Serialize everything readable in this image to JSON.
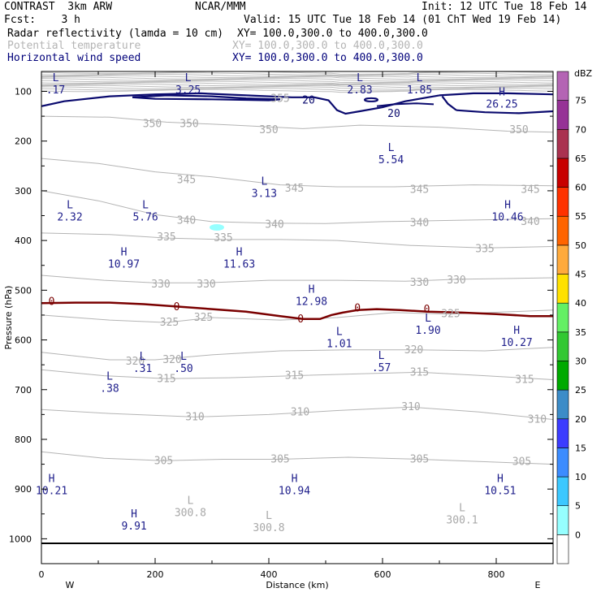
{
  "header": {
    "line1_left": "CONTRAST  3km ARW",
    "line1_mid": "NCAR/MMM",
    "line1_right": "Init: 12 UTC Tue 18 Feb 14",
    "line2_left": "Fcst:    3 h",
    "line2_right": "Valid: 15 UTC Tue 18 Feb 14 (01 ChT Wed 19 Feb 14)",
    "field1": "Radar reflectivity (lamda = 10 cm)",
    "field1_xy": "XY= 100.0,300.0 to 400.0,300.0",
    "field2": "Potential temperature",
    "field2_xy": "XY= 100.0,300.0 to 400.0,300.0",
    "field3": "Horizontal wind speed",
    "field3_xy": "XY= 100.0,300.0 to 400.0,300.0"
  },
  "chart_data": {
    "type": "contour cross-section",
    "xlabel": "Distance (km)",
    "ylabel": "Pressure (hPa)",
    "x_ticks": [
      "0",
      "200",
      "400",
      "600",
      "800"
    ],
    "x_tick_values": [
      0,
      200,
      400,
      600,
      800
    ],
    "xlim": [
      0,
      900
    ],
    "y_ticks": [
      "100",
      "200",
      "300",
      "400",
      "500",
      "600",
      "700",
      "800",
      "900",
      "1000"
    ],
    "y_tick_values": [
      100,
      200,
      300,
      400,
      500,
      600,
      700,
      800,
      900,
      1000
    ],
    "ylim": [
      1050,
      60
    ],
    "y_scale": "linear",
    "endpoint_left": "W",
    "endpoint_right": "E",
    "colorbar": {
      "unit": "dBZ",
      "levels": [
        "0",
        "5",
        "10",
        "15",
        "20",
        "25",
        "30",
        "35",
        "40",
        "45",
        "50",
        "55",
        "60",
        "65",
        "70",
        "75"
      ],
      "colors": [
        "#ffffff",
        "#96ffff",
        "#3cc8ff",
        "#3c8cff",
        "#3c3cff",
        "#3c8cc8",
        "#00aa00",
        "#32c832",
        "#64f064",
        "#ffe100",
        "#ffaa3c",
        "#ff6400",
        "#ff3200",
        "#c80000",
        "#aa3250",
        "#963296",
        "#b464b4"
      ]
    },
    "theta_labels": [
      {
        "text": "355",
        "x": 420,
        "p": 115
      },
      {
        "text": "350",
        "x": 195,
        "p": 165
      },
      {
        "text": "350",
        "x": 260,
        "p": 165
      },
      {
        "text": "350",
        "x": 400,
        "p": 178
      },
      {
        "text": "350",
        "x": 840,
        "p": 178
      },
      {
        "text": "345",
        "x": 255,
        "p": 278
      },
      {
        "text": "345",
        "x": 445,
        "p": 295
      },
      {
        "text": "345",
        "x": 665,
        "p": 298
      },
      {
        "text": "345",
        "x": 860,
        "p": 298
      },
      {
        "text": "340",
        "x": 255,
        "p": 360
      },
      {
        "text": "340",
        "x": 410,
        "p": 368
      },
      {
        "text": "340",
        "x": 665,
        "p": 365
      },
      {
        "text": "340",
        "x": 860,
        "p": 362
      },
      {
        "text": "335",
        "x": 220,
        "p": 393
      },
      {
        "text": "335",
        "x": 320,
        "p": 395
      },
      {
        "text": "335",
        "x": 780,
        "p": 417
      },
      {
        "text": "330",
        "x": 210,
        "p": 488
      },
      {
        "text": "330",
        "x": 290,
        "p": 488
      },
      {
        "text": "330",
        "x": 665,
        "p": 485
      },
      {
        "text": "330",
        "x": 730,
        "p": 480
      },
      {
        "text": "325",
        "x": 225,
        "p": 565
      },
      {
        "text": "325",
        "x": 285,
        "p": 555
      },
      {
        "text": "325",
        "x": 720,
        "p": 548
      },
      {
        "text": "320",
        "x": 165,
        "p": 643
      },
      {
        "text": "320",
        "x": 230,
        "p": 640
      },
      {
        "text": "320",
        "x": 655,
        "p": 620
      },
      {
        "text": "315",
        "x": 220,
        "p": 678
      },
      {
        "text": "315",
        "x": 445,
        "p": 672
      },
      {
        "text": "315",
        "x": 665,
        "p": 665
      },
      {
        "text": "315",
        "x": 850,
        "p": 680
      },
      {
        "text": "310",
        "x": 270,
        "p": 755
      },
      {
        "text": "310",
        "x": 455,
        "p": 745
      },
      {
        "text": "310",
        "x": 650,
        "p": 735
      },
      {
        "text": "310",
        "x": 872,
        "p": 760
      },
      {
        "text": "305",
        "x": 215,
        "p": 843
      },
      {
        "text": "305",
        "x": 420,
        "p": 840
      },
      {
        "text": "305",
        "x": 665,
        "p": 840
      },
      {
        "text": "305",
        "x": 845,
        "p": 845
      }
    ],
    "wind_contour_labels": [
      {
        "text": "20",
        "x": 470,
        "p": 118
      },
      {
        "text": "20",
        "x": 620,
        "p": 145
      }
    ],
    "reflectivity_zero_labels": [
      {
        "text": "0",
        "x": 18,
        "p": 525
      },
      {
        "text": "0",
        "x": 238,
        "p": 535
      },
      {
        "text": "0",
        "x": 456,
        "p": 560
      },
      {
        "text": "0",
        "x": 556,
        "p": 538
      },
      {
        "text": "0",
        "x": 678,
        "p": 540
      }
    ],
    "wind_extrema": [
      {
        "kind": "L",
        "value": ".17",
        "x": 25,
        "p": 80
      },
      {
        "kind": "L",
        "value": "3.25",
        "x": 258,
        "p": 80
      },
      {
        "kind": "L",
        "value": "2.83",
        "x": 560,
        "p": 80
      },
      {
        "kind": "L",
        "value": "1.85",
        "x": 665,
        "p": 80
      },
      {
        "kind": "H",
        "value": "26.25",
        "x": 810,
        "p": 108
      },
      {
        "kind": "L",
        "value": "5.54",
        "x": 615,
        "p": 220
      },
      {
        "kind": "L",
        "value": "3.13",
        "x": 392,
        "p": 288
      },
      {
        "kind": "L",
        "value": "2.32",
        "x": 50,
        "p": 335
      },
      {
        "kind": "L",
        "value": "5.76",
        "x": 183,
        "p": 335
      },
      {
        "kind": "H",
        "value": "10.46",
        "x": 820,
        "p": 335
      },
      {
        "kind": "H",
        "value": "10.97",
        "x": 145,
        "p": 430
      },
      {
        "kind": "H",
        "value": "11.63",
        "x": 348,
        "p": 430
      },
      {
        "kind": "H",
        "value": "12.98",
        "x": 475,
        "p": 505
      },
      {
        "kind": "L",
        "value": "1.90",
        "x": 680,
        "p": 563
      },
      {
        "kind": "H",
        "value": "10.27",
        "x": 836,
        "p": 588
      },
      {
        "kind": "L",
        "value": "1.01",
        "x": 524,
        "p": 590
      },
      {
        "kind": "L",
        "value": ".31",
        "x": 178,
        "p": 640
      },
      {
        "kind": "L",
        "value": ".50",
        "x": 250,
        "p": 640
      },
      {
        "kind": "L",
        "value": ".57",
        "x": 598,
        "p": 638
      },
      {
        "kind": "L",
        "value": ".38",
        "x": 120,
        "p": 680
      },
      {
        "kind": "H",
        "value": "10.21",
        "x": 18,
        "p": 886
      },
      {
        "kind": "H",
        "value": "10.94",
        "x": 445,
        "p": 886
      },
      {
        "kind": "H",
        "value": "10.51",
        "x": 807,
        "p": 886
      }
    ],
    "theta_extrema": [
      {
        "kind": "H",
        "value": "9.91",
        "x": 163,
        "p": 957
      },
      {
        "kind": "L",
        "value": "300.8",
        "x": 262,
        "p": 930
      },
      {
        "kind": "L",
        "value": "300.8",
        "x": 400,
        "p": 960
      },
      {
        "kind": "L",
        "value": "300.1",
        "x": 740,
        "p": 945
      }
    ]
  }
}
